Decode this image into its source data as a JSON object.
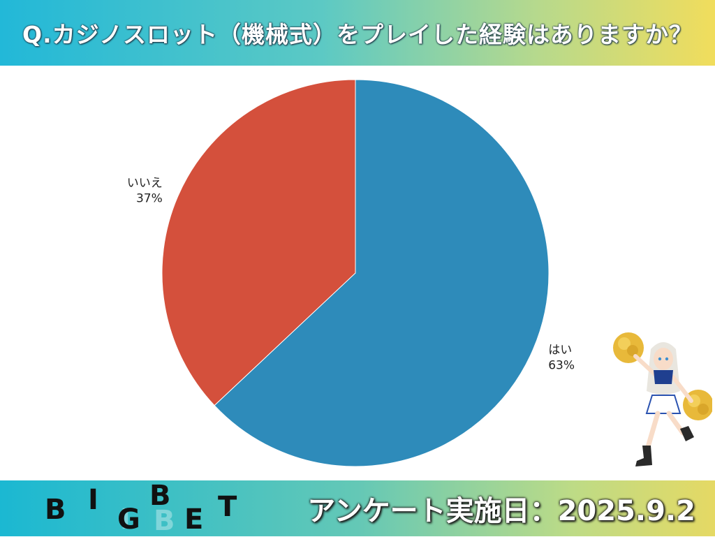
{
  "header": {
    "title": "Q.カジノスロット（機械式）をプレイした経験はありますか？"
  },
  "chart_data": {
    "type": "pie",
    "slices": [
      {
        "label": "はい",
        "percent_label": "63%",
        "value": 63,
        "color": "#2e8bba"
      },
      {
        "label": "いいえ",
        "percent_label": "37%",
        "value": 37,
        "color": "#d4503c"
      }
    ],
    "start": "12 o'clock",
    "direction": "clockwise"
  },
  "footer": {
    "logo_letters": [
      "B",
      "I",
      "G",
      "B",
      "E",
      "T"
    ],
    "survey_date": "アンケート実施日：2025.9.2"
  }
}
